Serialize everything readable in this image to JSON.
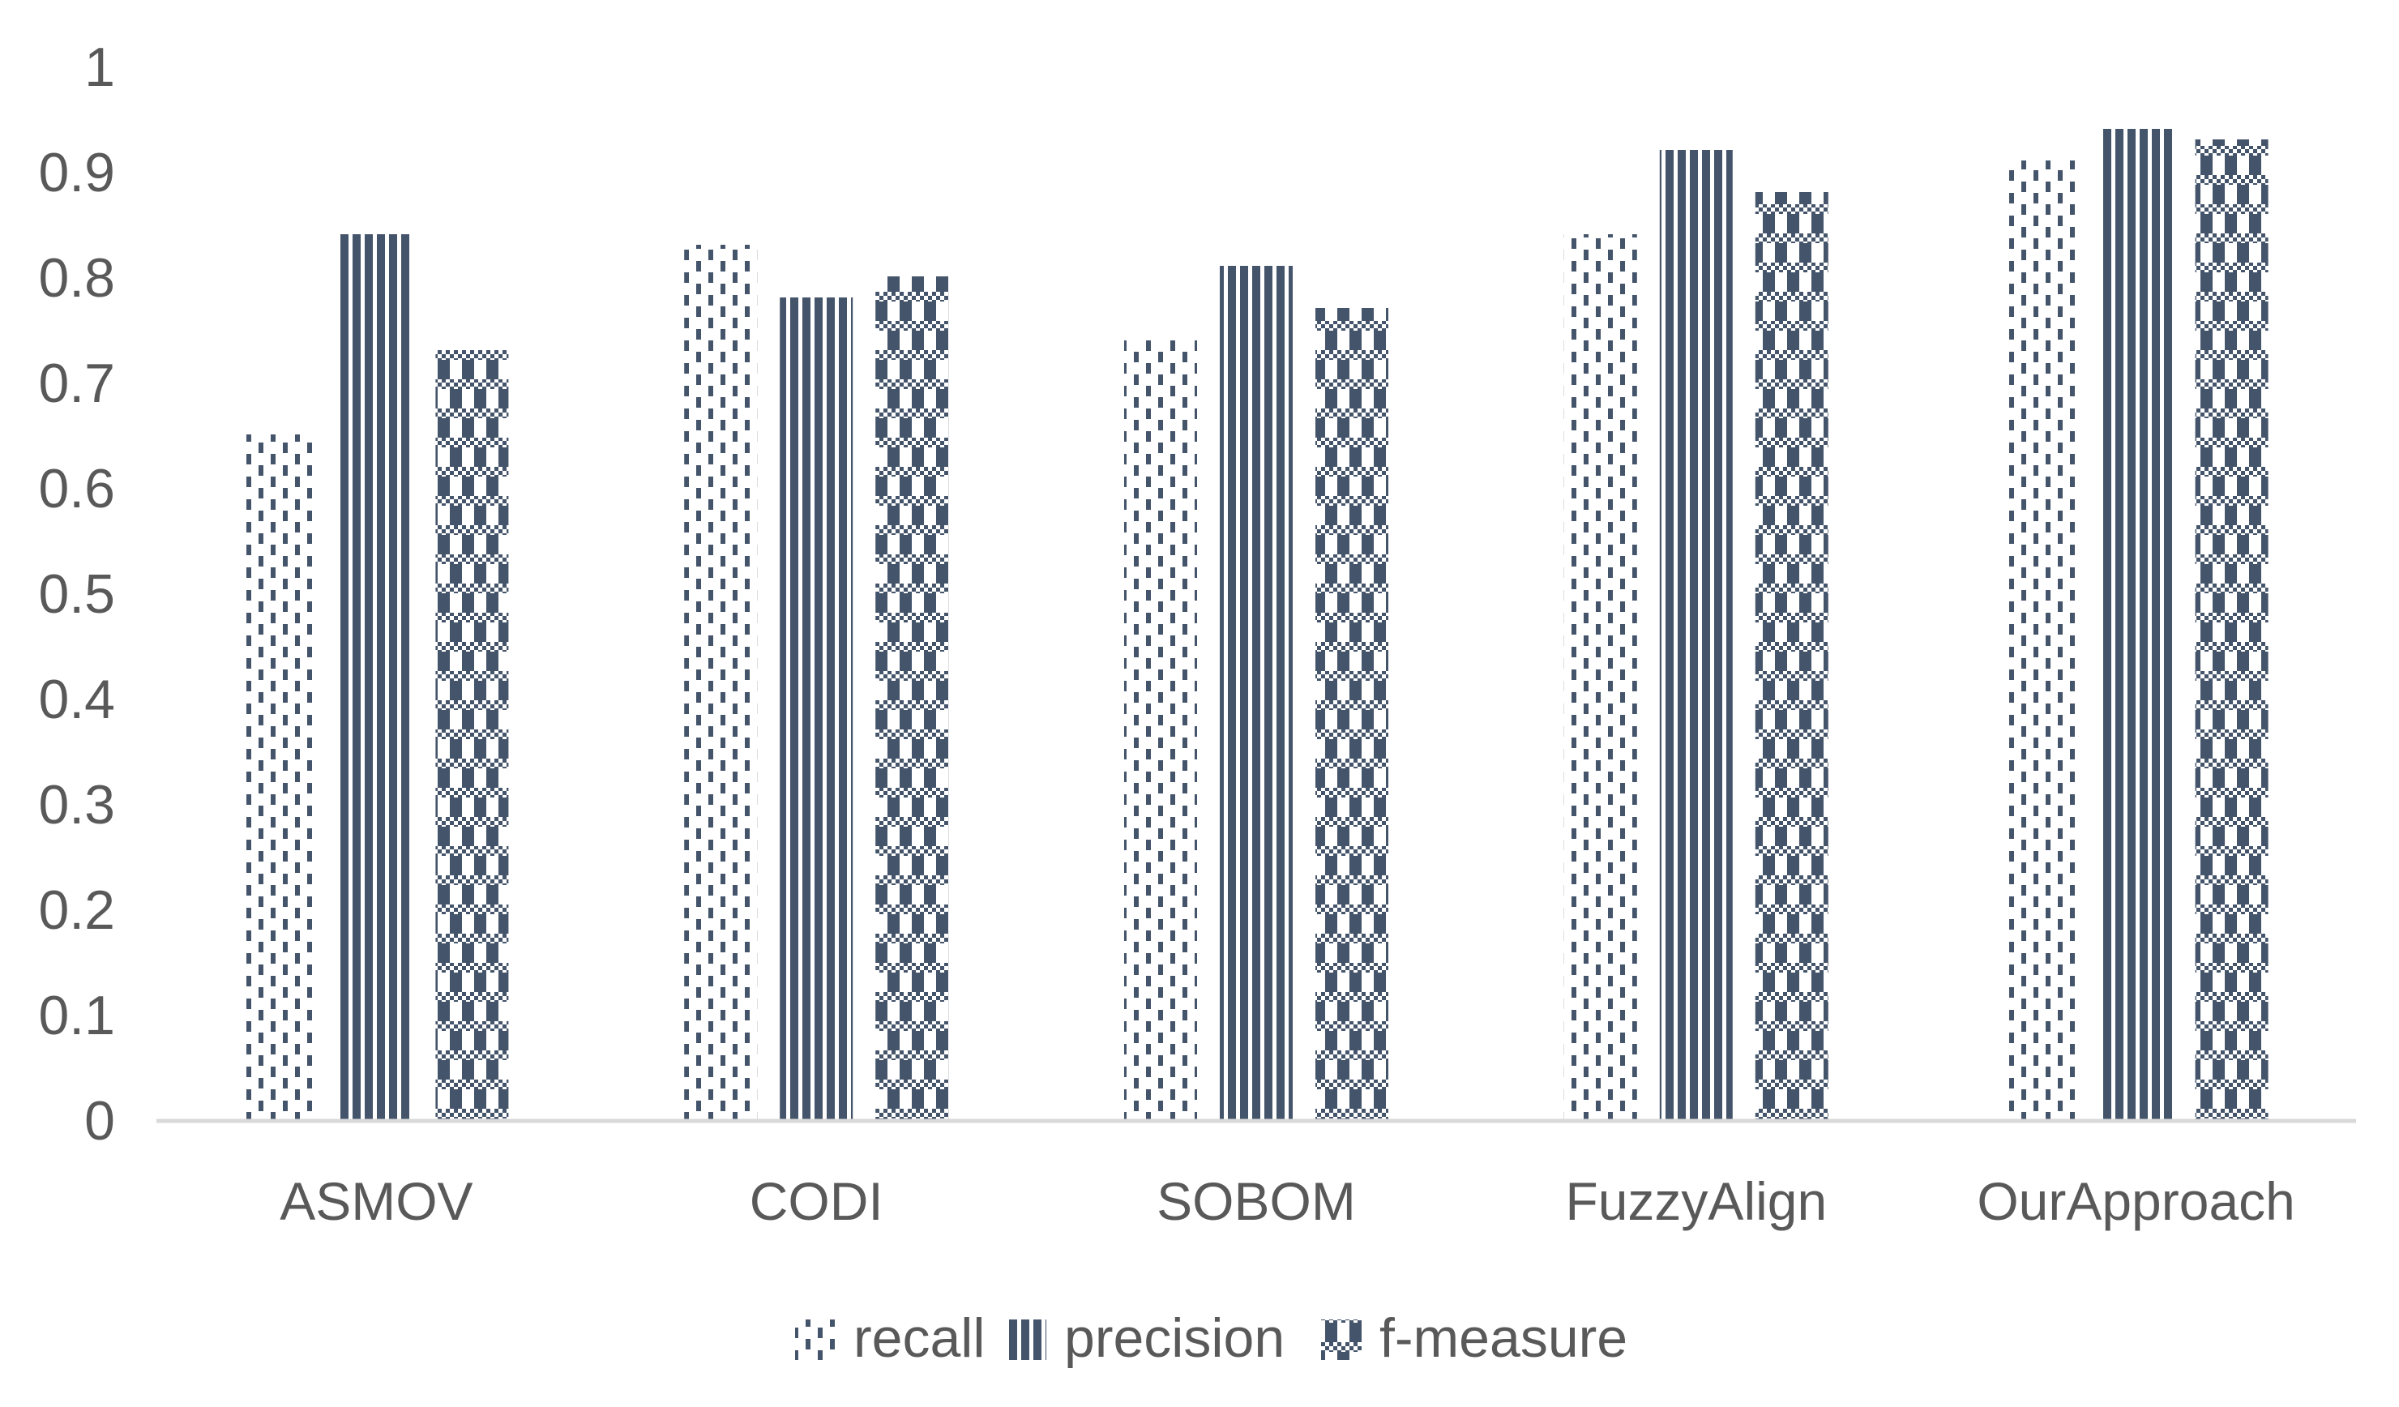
{
  "chart_data": {
    "type": "bar",
    "title": "",
    "xlabel": "",
    "ylabel": "",
    "categories": [
      "ASMOV",
      "CODI",
      "SOBOM",
      "FuzzyAlign",
      "OurApproach"
    ],
    "series": [
      {
        "name": "recall",
        "pattern": "dashed-vertical-ticks",
        "values": [
          0.65,
          0.83,
          0.74,
          0.84,
          0.91
        ]
      },
      {
        "name": "precision",
        "pattern": "solid-vertical-lines",
        "values": [
          0.84,
          0.78,
          0.81,
          0.92,
          0.94
        ]
      },
      {
        "name": "f-measure",
        "pattern": "checker-plaid",
        "values": [
          0.73,
          0.8,
          0.77,
          0.88,
          0.93
        ]
      }
    ],
    "ylim": [
      0,
      1
    ],
    "ytick_step": 0.1,
    "ytick_labels": [
      "0",
      "0.1",
      "0.2",
      "0.3",
      "0.4",
      "0.5",
      "0.6",
      "0.7",
      "0.8",
      "0.9",
      "1"
    ],
    "grid": false,
    "legend_position": "bottom-center",
    "colors": {
      "bar_ink": "#44546A",
      "axis_line": "#D9D9D9",
      "text": "#595959",
      "background": "#FFFFFF"
    }
  }
}
